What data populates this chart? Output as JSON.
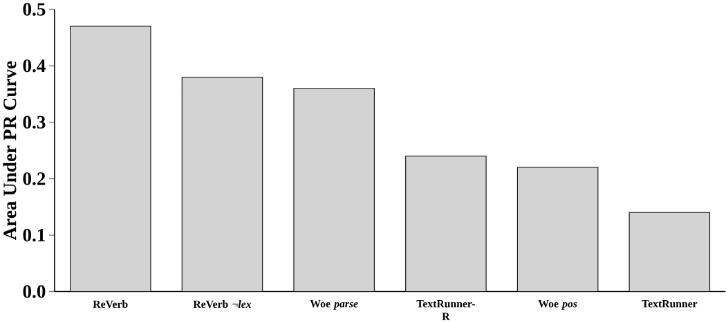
{
  "chart_data": {
    "type": "bar",
    "ylabel": "Area Under PR Curve",
    "categories": [
      "ReVerb",
      "ReVerb ¬*lex*",
      "Woe *parse*",
      "TextRunner-R",
      "Woe *pos*",
      "TextRunner"
    ],
    "values": [
      0.47,
      0.38,
      0.36,
      0.24,
      0.22,
      0.14
    ],
    "color": "#d3d3d3",
    "ylim": [
      0,
      0.5
    ],
    "yticks": [
      {
        "value": 0,
        "label": "0.0"
      },
      {
        "value": 0.1,
        "label": "0.1"
      },
      {
        "value": 0.2,
        "label": "0.2"
      },
      {
        "value": 0.3,
        "label": "0.3"
      },
      {
        "value": 0.4,
        "label": "0.4"
      },
      {
        "value": 0.5,
        "label": "0.5"
      }
    ],
    "grid": false
  }
}
